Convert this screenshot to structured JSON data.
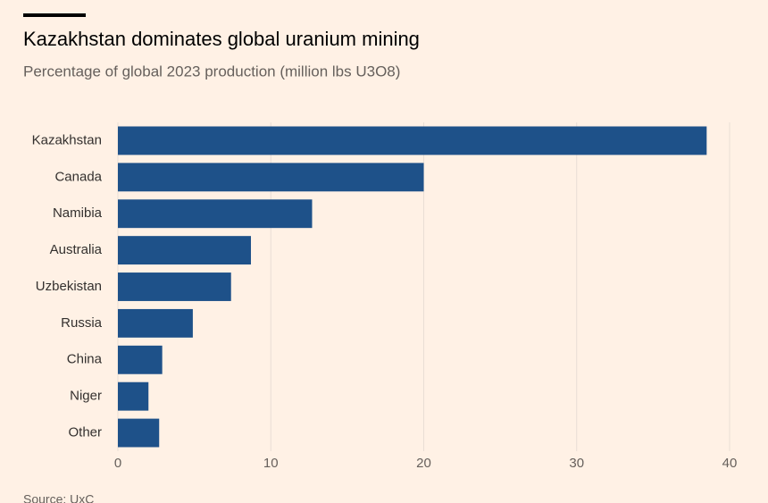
{
  "chart_data": {
    "type": "barh",
    "title": "Kazakhstan dominates global uranium mining",
    "subtitle": "Percentage of global 2023 production (million lbs U3O8)",
    "source": "Source: UxC",
    "categories": [
      "Kazakhstan",
      "Canada",
      "Namibia",
      "Australia",
      "Uzbekistan",
      "Russia",
      "China",
      "Niger",
      "Other"
    ],
    "values": [
      38.5,
      20.0,
      12.7,
      8.7,
      7.4,
      4.9,
      2.9,
      2.0,
      2.7
    ],
    "color": "#1e5189",
    "xlim": [
      0,
      40
    ],
    "xticks": [
      0,
      10,
      20,
      30,
      40
    ],
    "grid": true
  }
}
